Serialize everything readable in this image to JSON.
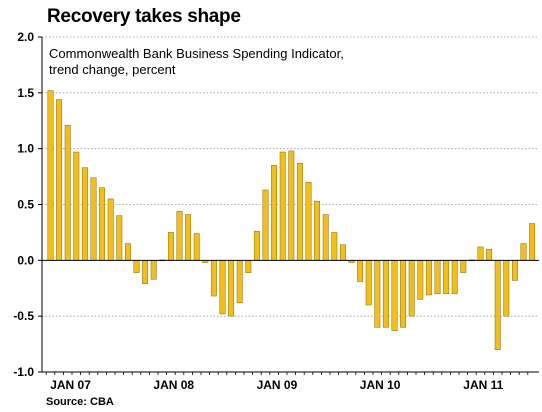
{
  "title": "Recovery takes shape",
  "source": "Source: CBA",
  "colors": {
    "bar_fill": "#F2BE1E",
    "bar_stroke": "#8A6A05",
    "grid": "#9A9A9A",
    "axis": "#000000"
  },
  "chart_data": {
    "type": "bar",
    "title": "",
    "subtitle_lines": [
      "Commonwealth Bank Business Spending Indicator,",
      "trend change, percent"
    ],
    "xlabel": "",
    "ylabel": "",
    "ylim": [
      -1.0,
      2.0
    ],
    "yticks": [
      -1.0,
      -0.5,
      0.0,
      0.5,
      1.0,
      1.5,
      2.0
    ],
    "ytick_labels": [
      "-1.0",
      "-0.5",
      "0.0",
      "0.5",
      "1.0",
      "1.5",
      "2.0"
    ],
    "grid": true,
    "x_tick_labels": [
      "JAN 07",
      "JAN 08",
      "JAN 09",
      "JAN 10",
      "JAN 11"
    ],
    "x_tick_months": [
      "2007-01",
      "2008-01",
      "2009-01",
      "2010-01",
      "2011-01"
    ],
    "categories": [
      "2007-01",
      "2007-02",
      "2007-03",
      "2007-04",
      "2007-05",
      "2007-06",
      "2007-07",
      "2007-08",
      "2007-09",
      "2007-10",
      "2007-11",
      "2007-12",
      "2008-01",
      "2008-02",
      "2008-03",
      "2008-04",
      "2008-05",
      "2008-06",
      "2008-07",
      "2008-08",
      "2008-09",
      "2008-10",
      "2008-11",
      "2008-12",
      "2009-01",
      "2009-02",
      "2009-03",
      "2009-04",
      "2009-05",
      "2009-06",
      "2009-07",
      "2009-08",
      "2009-09",
      "2009-10",
      "2009-11",
      "2009-12",
      "2010-01",
      "2010-02",
      "2010-03",
      "2010-04",
      "2010-05",
      "2010-06",
      "2010-07",
      "2010-08",
      "2010-09",
      "2010-10",
      "2010-11",
      "2010-12",
      "2011-01",
      "2011-02",
      "2011-03",
      "2011-04",
      "2011-05",
      "2011-06",
      "2011-07",
      "2011-08",
      "2011-09"
    ],
    "values": [
      1.52,
      1.44,
      1.21,
      0.97,
      0.83,
      0.74,
      0.65,
      0.55,
      0.4,
      0.15,
      -0.11,
      -0.21,
      -0.17,
      0.0,
      0.25,
      0.44,
      0.41,
      0.24,
      -0.02,
      -0.32,
      -0.48,
      -0.5,
      -0.38,
      -0.11,
      0.26,
      0.63,
      0.85,
      0.97,
      0.98,
      0.87,
      0.7,
      0.53,
      0.41,
      0.25,
      0.14,
      -0.02,
      -0.19,
      -0.4,
      -0.6,
      -0.6,
      -0.63,
      -0.6,
      -0.5,
      -0.35,
      -0.31,
      -0.3,
      -0.3,
      -0.3,
      -0.11,
      0.0,
      0.12,
      0.1,
      -0.8,
      -0.5,
      -0.18,
      0.15,
      0.33
    ]
  }
}
